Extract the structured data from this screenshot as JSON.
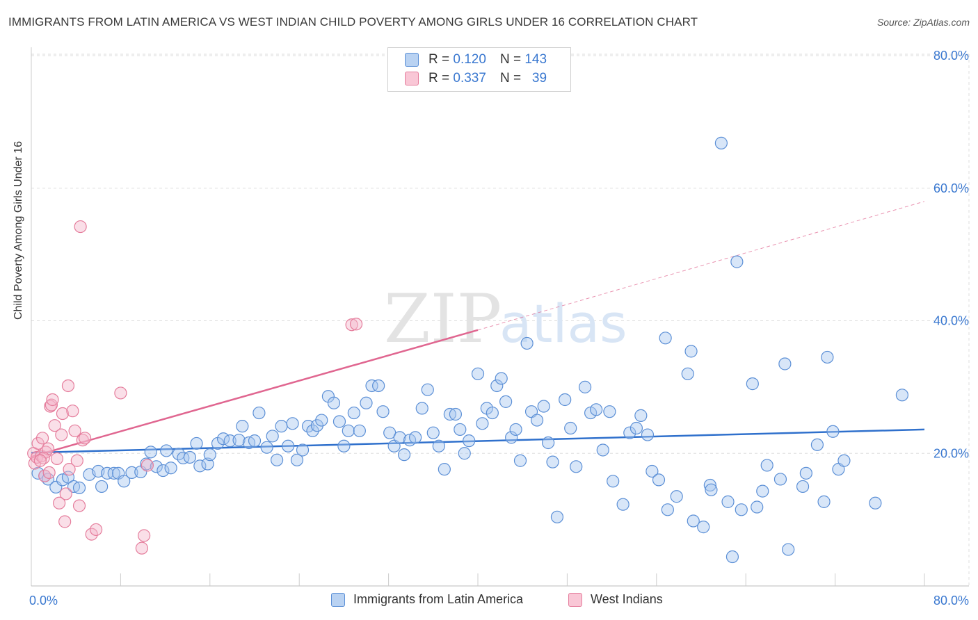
{
  "header": {
    "title": "IMMIGRANTS FROM LATIN AMERICA VS WEST INDIAN CHILD POVERTY AMONG GIRLS UNDER 16 CORRELATION CHART",
    "source": "Source: ZipAtlas.com"
  },
  "legend": {
    "rows": [
      {
        "r_label": "R =",
        "r_value": "0.120",
        "n_label": "N =",
        "n_value": "143"
      },
      {
        "r_label": "R =",
        "r_value": "0.337",
        "n_label": "N =",
        "n_value": "39"
      }
    ]
  },
  "watermark": {
    "zip": "ZIP",
    "atlas": "atlas"
  },
  "colors": {
    "blue_fill": "#a9c8ef",
    "blue_stroke": "#5b8fd6",
    "blue_line": "#2f70cc",
    "pink_fill": "#f5b9cb",
    "pink_stroke": "#e57d9c",
    "pink_line": "#e06690",
    "tick_text": "#3a78d0",
    "grid": "#dddddd"
  },
  "chart_data": {
    "type": "scatter",
    "title": "IMMIGRANTS FROM LATIN AMERICA VS WEST INDIAN CHILD POVERTY AMONG GIRLS UNDER 16 CORRELATION CHART",
    "xlabel": "",
    "ylabel": "Child Poverty Among Girls Under 16",
    "xlim": [
      0,
      80
    ],
    "ylim": [
      0,
      82
    ],
    "x_tick_labels": [
      "0.0%",
      "80.0%"
    ],
    "y_ticks": [
      20,
      40,
      60,
      80
    ],
    "y_tick_labels": [
      "20.0%",
      "40.0%",
      "60.0%",
      "80.0%"
    ],
    "grid": true,
    "legend_position": "top-center",
    "series": [
      {
        "name": "Immigrants from Latin America",
        "color": "#5b8fd6",
        "r": 0.12,
        "n": 143,
        "trend": {
          "x": [
            0,
            80
          ],
          "y": [
            20.1,
            23.6
          ]
        },
        "points": [
          [
            0.6,
            17.0
          ],
          [
            1.2,
            16.6
          ],
          [
            1.5,
            16.1
          ],
          [
            2.2,
            14.9
          ],
          [
            2.8,
            16.0
          ],
          [
            3.3,
            16.4
          ],
          [
            3.8,
            15.0
          ],
          [
            4.3,
            14.8
          ],
          [
            5.2,
            16.8
          ],
          [
            6.0,
            17.3
          ],
          [
            6.3,
            15.0
          ],
          [
            6.8,
            17.0
          ],
          [
            7.4,
            17.0
          ],
          [
            7.8,
            17.0
          ],
          [
            8.3,
            15.8
          ],
          [
            9.0,
            17.1
          ],
          [
            9.8,
            17.2
          ],
          [
            10.3,
            18.4
          ],
          [
            10.7,
            20.2
          ],
          [
            11.2,
            18.0
          ],
          [
            11.8,
            17.4
          ],
          [
            12.1,
            20.4
          ],
          [
            12.5,
            17.8
          ],
          [
            13.2,
            19.9
          ],
          [
            13.6,
            19.3
          ],
          [
            14.2,
            19.4
          ],
          [
            14.8,
            21.5
          ],
          [
            15.1,
            18.1
          ],
          [
            15.8,
            18.4
          ],
          [
            16.0,
            19.8
          ],
          [
            16.7,
            21.5
          ],
          [
            17.2,
            22.2
          ],
          [
            17.8,
            21.9
          ],
          [
            18.6,
            22.0
          ],
          [
            18.9,
            24.1
          ],
          [
            19.5,
            21.6
          ],
          [
            20.0,
            21.9
          ],
          [
            20.4,
            26.1
          ],
          [
            21.1,
            20.9
          ],
          [
            21.6,
            22.6
          ],
          [
            22.0,
            19.0
          ],
          [
            22.4,
            24.1
          ],
          [
            23.0,
            21.1
          ],
          [
            23.4,
            24.5
          ],
          [
            23.8,
            19.0
          ],
          [
            24.3,
            20.5
          ],
          [
            24.8,
            24.1
          ],
          [
            25.2,
            23.4
          ],
          [
            25.6,
            24.2
          ],
          [
            26.0,
            25.0
          ],
          [
            26.6,
            28.6
          ],
          [
            27.1,
            27.6
          ],
          [
            27.6,
            24.8
          ],
          [
            28.0,
            21.1
          ],
          [
            28.4,
            23.4
          ],
          [
            28.9,
            26.1
          ],
          [
            29.4,
            23.4
          ],
          [
            30.0,
            27.6
          ],
          [
            30.5,
            30.2
          ],
          [
            31.1,
            30.2
          ],
          [
            31.5,
            26.3
          ],
          [
            32.1,
            23.1
          ],
          [
            32.5,
            21.1
          ],
          [
            33.0,
            22.4
          ],
          [
            33.4,
            19.8
          ],
          [
            33.9,
            22.0
          ],
          [
            34.4,
            22.4
          ],
          [
            35.0,
            26.8
          ],
          [
            35.5,
            29.6
          ],
          [
            36.0,
            23.1
          ],
          [
            36.5,
            21.1
          ],
          [
            37.0,
            17.6
          ],
          [
            37.5,
            25.9
          ],
          [
            38.0,
            25.9
          ],
          [
            38.4,
            23.6
          ],
          [
            38.8,
            20.0
          ],
          [
            39.2,
            21.9
          ],
          [
            40.0,
            32.0
          ],
          [
            40.4,
            24.5
          ],
          [
            40.8,
            26.8
          ],
          [
            41.3,
            26.1
          ],
          [
            41.7,
            30.2
          ],
          [
            42.1,
            31.3
          ],
          [
            42.5,
            27.8
          ],
          [
            43.0,
            22.4
          ],
          [
            43.4,
            23.6
          ],
          [
            43.8,
            18.9
          ],
          [
            44.4,
            36.6
          ],
          [
            44.8,
            26.3
          ],
          [
            45.3,
            25.0
          ],
          [
            45.9,
            27.1
          ],
          [
            46.3,
            21.6
          ],
          [
            46.7,
            18.7
          ],
          [
            47.1,
            10.4
          ],
          [
            47.8,
            28.1
          ],
          [
            48.3,
            23.8
          ],
          [
            48.8,
            18.0
          ],
          [
            49.6,
            30.0
          ],
          [
            50.1,
            26.1
          ],
          [
            50.6,
            26.6
          ],
          [
            51.2,
            20.5
          ],
          [
            51.8,
            26.3
          ],
          [
            52.1,
            15.8
          ],
          [
            53.0,
            12.3
          ],
          [
            53.6,
            23.1
          ],
          [
            54.2,
            23.8
          ],
          [
            54.6,
            25.7
          ],
          [
            55.2,
            22.8
          ],
          [
            55.6,
            17.3
          ],
          [
            56.2,
            16.0
          ],
          [
            56.8,
            37.4
          ],
          [
            57.0,
            11.5
          ],
          [
            57.8,
            13.5
          ],
          [
            58.8,
            32.0
          ],
          [
            59.1,
            35.4
          ],
          [
            59.3,
            9.8
          ],
          [
            60.2,
            8.9
          ],
          [
            60.8,
            15.2
          ],
          [
            60.9,
            14.5
          ],
          [
            61.8,
            66.8
          ],
          [
            62.4,
            12.7
          ],
          [
            62.8,
            4.4
          ],
          [
            63.2,
            48.9
          ],
          [
            63.6,
            11.5
          ],
          [
            64.6,
            30.5
          ],
          [
            65.0,
            11.9
          ],
          [
            65.5,
            14.3
          ],
          [
            65.9,
            18.2
          ],
          [
            67.1,
            16.1
          ],
          [
            67.5,
            33.5
          ],
          [
            67.8,
            5.5
          ],
          [
            69.1,
            15.0
          ],
          [
            69.4,
            17.0
          ],
          [
            70.4,
            21.3
          ],
          [
            71.0,
            12.7
          ],
          [
            71.3,
            34.5
          ],
          [
            71.8,
            23.3
          ],
          [
            72.3,
            17.6
          ],
          [
            72.8,
            18.9
          ],
          [
            75.6,
            12.5
          ],
          [
            78.0,
            28.8
          ]
        ]
      },
      {
        "name": "West Indians",
        "color": "#e57d9c",
        "r": 0.337,
        "n": 39,
        "trend": {
          "x": [
            0,
            40
          ],
          "y": [
            19.5,
            38.6
          ]
        },
        "trend_ext": {
          "x": [
            40,
            80
          ],
          "y": [
            38.6,
            58.0
          ]
        },
        "points": [
          [
            0.2,
            20.0
          ],
          [
            0.3,
            18.5
          ],
          [
            0.5,
            19.4
          ],
          [
            0.6,
            21.5
          ],
          [
            0.9,
            19.6
          ],
          [
            1.0,
            22.3
          ],
          [
            1.2,
            16.6
          ],
          [
            1.3,
            20.2
          ],
          [
            1.5,
            20.7
          ],
          [
            1.6,
            17.1
          ],
          [
            1.7,
            27.1
          ],
          [
            1.8,
            27.3
          ],
          [
            1.9,
            28.1
          ],
          [
            2.1,
            24.2
          ],
          [
            2.3,
            19.2
          ],
          [
            2.5,
            12.5
          ],
          [
            2.7,
            22.8
          ],
          [
            2.8,
            26.0
          ],
          [
            3.0,
            9.7
          ],
          [
            3.1,
            13.9
          ],
          [
            3.3,
            30.2
          ],
          [
            3.4,
            17.6
          ],
          [
            3.7,
            26.4
          ],
          [
            3.9,
            23.4
          ],
          [
            4.1,
            18.9
          ],
          [
            4.3,
            12.1
          ],
          [
            4.4,
            54.2
          ],
          [
            4.6,
            22.0
          ],
          [
            4.8,
            22.3
          ],
          [
            5.4,
            7.8
          ],
          [
            5.8,
            8.5
          ],
          [
            8.0,
            29.1
          ],
          [
            9.9,
            5.7
          ],
          [
            10.1,
            7.6
          ],
          [
            10.4,
            18.2
          ],
          [
            28.7,
            39.4
          ],
          [
            29.1,
            39.5
          ],
          [
            1.1,
            19.3
          ],
          [
            0.8,
            18.9
          ]
        ]
      }
    ]
  },
  "bottom_legend": [
    {
      "label": "Immigrants from Latin America"
    },
    {
      "label": "West Indians"
    }
  ]
}
